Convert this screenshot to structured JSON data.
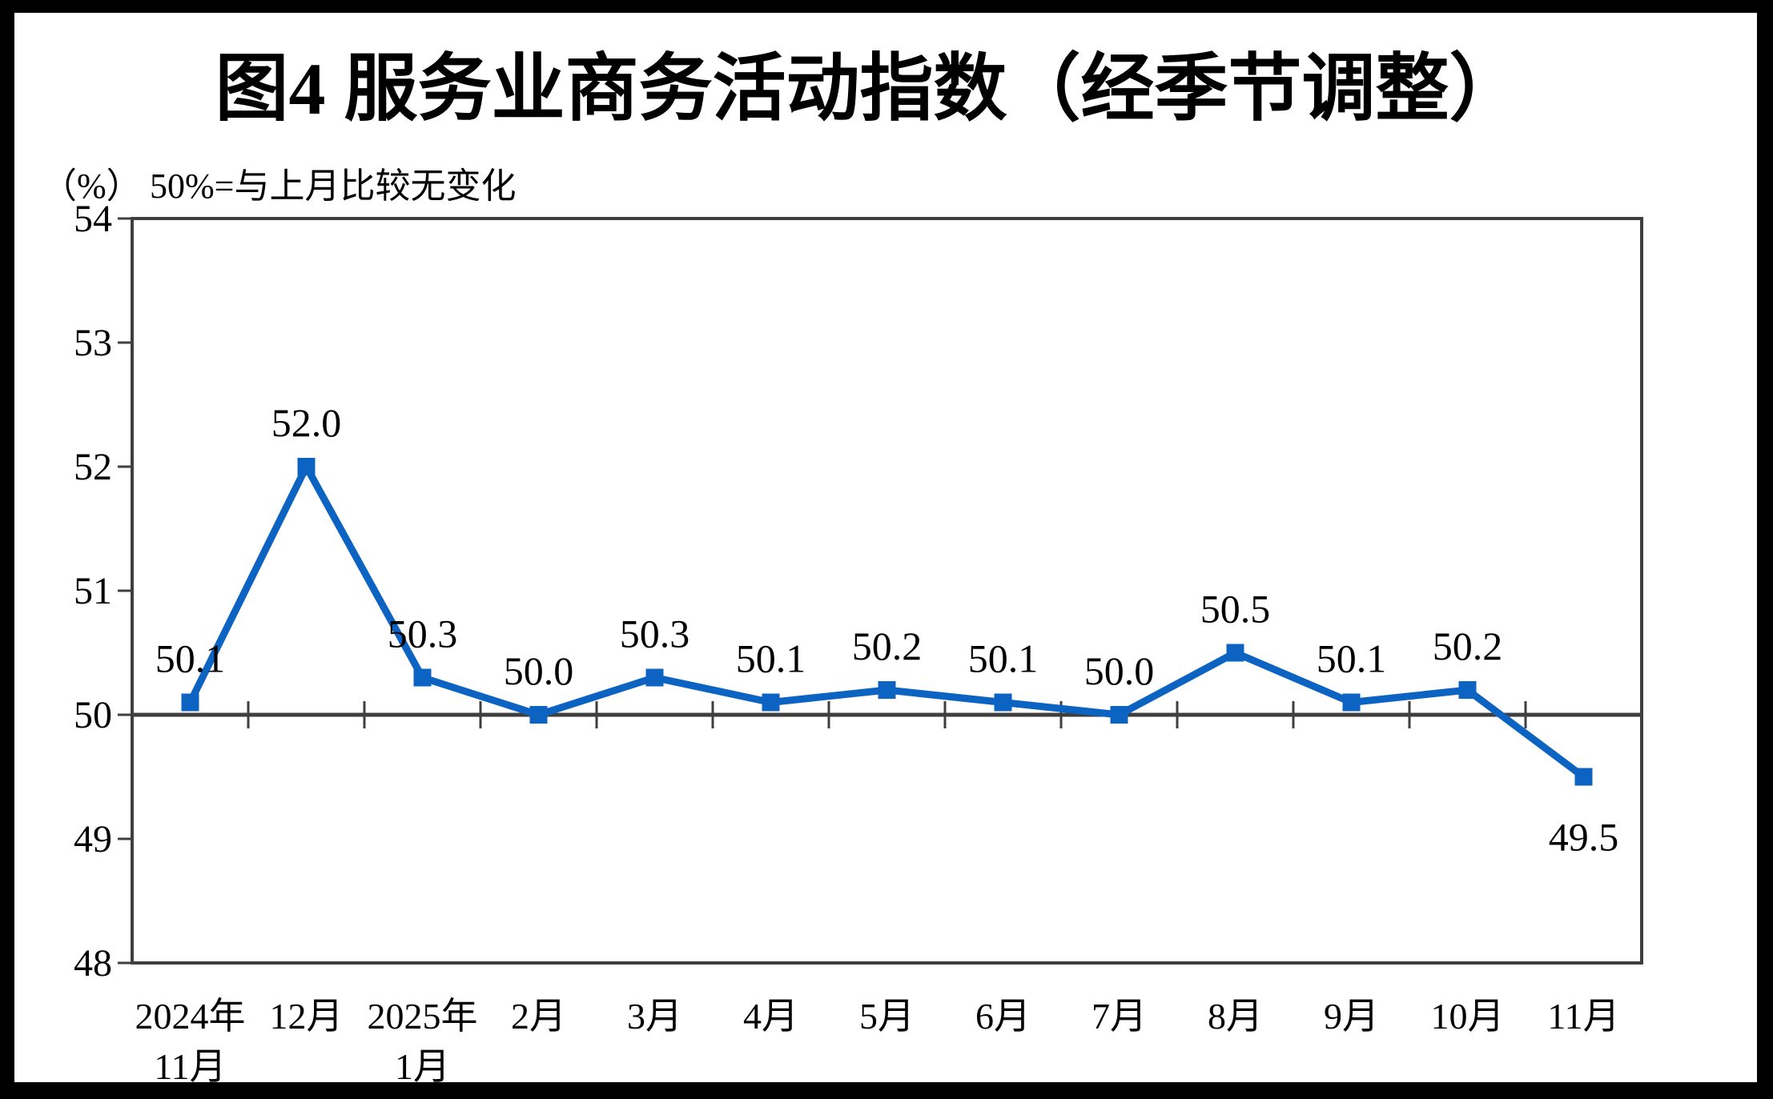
{
  "chart_data": {
    "type": "line",
    "title": "图4  服务业商务活动指数（经季节调整）",
    "y_unit_label": "（%）",
    "reference_note": "50%=与上月比较无变化",
    "categories": [
      "2024年\n11月",
      "12月",
      "2025年\n1月",
      "2月",
      "3月",
      "4月",
      "5月",
      "6月",
      "7月",
      "8月",
      "9月",
      "10月",
      "11月"
    ],
    "series": [
      {
        "name": "服务业商务活动指数",
        "values": [
          50.1,
          52.0,
          50.3,
          50.0,
          50.3,
          50.1,
          50.2,
          50.1,
          50.0,
          50.5,
          50.1,
          50.2,
          49.5
        ],
        "point_labels": [
          "50.1",
          "52.0",
          "50.3",
          "50.0",
          "50.3",
          "50.1",
          "50.2",
          "50.1",
          "50.0",
          "50.5",
          "50.1",
          "50.2",
          "49.5"
        ]
      }
    ],
    "ylim": [
      48,
      54
    ],
    "yticks": [
      54,
      53,
      52,
      51,
      50,
      49,
      48
    ],
    "reference_line_y": 50,
    "grid": false,
    "legend_position": "none",
    "colors": {
      "line": "#0C63C2",
      "marker": "#0C63C2",
      "axis": "#3F3F3F",
      "text": "#000000",
      "background": "#FFFFFF",
      "frame": "#000000"
    }
  }
}
